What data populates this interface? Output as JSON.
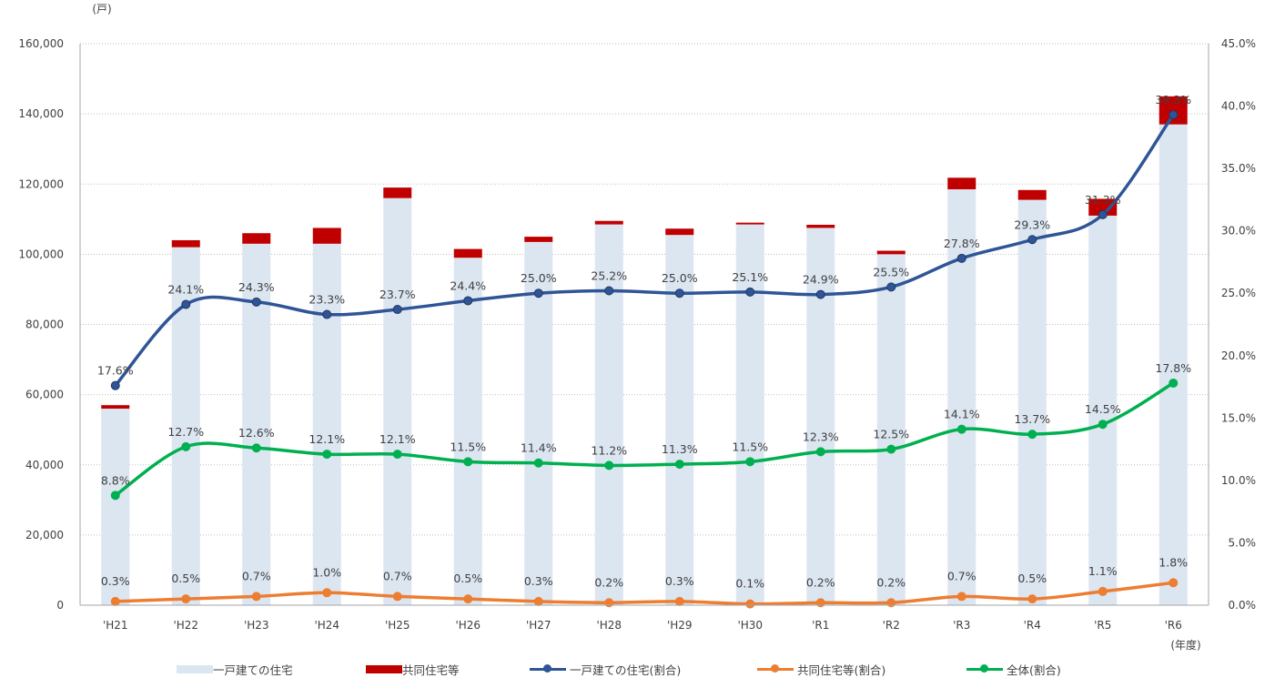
{
  "chart_data": {
    "type": "bar+line",
    "categories": [
      "'H21",
      "'H22",
      "'H23",
      "'H24",
      "'H25",
      "'H26",
      "'H27",
      "'H28",
      "'H29",
      "'H30",
      "'R1",
      "'R2",
      "'R3",
      "'R4",
      "'R5",
      "'R6"
    ],
    "xlabel": "(年度)",
    "y_left": {
      "unit": "(戸)",
      "min": 0,
      "max": 160000,
      "step": 20000,
      "ticks": [
        "0",
        "20,000",
        "40,000",
        "60,000",
        "80,000",
        "100,000",
        "120,000",
        "140,000",
        "160,000"
      ]
    },
    "y_right": {
      "min": 0,
      "max": 45,
      "step": 5,
      "ticks": [
        "0.0%",
        "5.0%",
        "10.0%",
        "15.0%",
        "20.0%",
        "25.0%",
        "30.0%",
        "35.0%",
        "40.0%",
        "45.0%"
      ]
    },
    "grid": true,
    "legend_position": "bottom",
    "bars": [
      {
        "name": "一戸建ての住宅",
        "color": "#dce6f1",
        "values": [
          56000,
          102000,
          103000,
          103000,
          116000,
          99000,
          103500,
          108500,
          105500,
          108500,
          107500,
          100000,
          118500,
          115500,
          111000,
          137000
        ]
      },
      {
        "name": "共同住宅等",
        "color": "#c00000",
        "values": [
          1000,
          2000,
          3000,
          4500,
          3000,
          2500,
          1500,
          1000,
          1800,
          500,
          900,
          1000,
          3300,
          2800,
          4800,
          8000
        ]
      }
    ],
    "lines": [
      {
        "name": "一戸建ての住宅(割合)",
        "color": "#2f5597",
        "values": [
          17.6,
          24.1,
          24.3,
          23.3,
          23.7,
          24.4,
          25.0,
          25.2,
          25.0,
          25.1,
          24.9,
          25.5,
          27.8,
          29.3,
          31.3,
          39.3
        ],
        "labels": [
          "17.6%",
          "24.1%",
          "24.3%",
          "23.3%",
          "23.7%",
          "24.4%",
          "25.0%",
          "25.2%",
          "25.0%",
          "25.1%",
          "24.9%",
          "25.5%",
          "27.8%",
          "29.3%",
          "31.3%",
          "39.3%"
        ]
      },
      {
        "name": "共同住宅等(割合)",
        "color": "#ed7d31",
        "values": [
          0.3,
          0.5,
          0.7,
          1.0,
          0.7,
          0.5,
          0.3,
          0.2,
          0.3,
          0.1,
          0.2,
          0.2,
          0.7,
          0.5,
          1.1,
          1.8
        ],
        "labels": [
          "0.3%",
          "0.5%",
          "0.7%",
          "1.0%",
          "0.7%",
          "0.5%",
          "0.3%",
          "0.2%",
          "0.3%",
          "0.1%",
          "0.2%",
          "0.2%",
          "0.7%",
          "0.5%",
          "1.1%",
          "1.8%"
        ]
      },
      {
        "name": "全体(割合)",
        "color": "#00b050",
        "values": [
          8.8,
          12.7,
          12.6,
          12.1,
          12.1,
          11.5,
          11.4,
          11.2,
          11.3,
          11.5,
          12.3,
          12.5,
          14.1,
          13.7,
          14.5,
          17.8
        ],
        "labels": [
          "8.8%",
          "12.7%",
          "12.6%",
          "12.1%",
          "12.1%",
          "11.5%",
          "11.4%",
          "11.2%",
          "11.3%",
          "11.5%",
          "12.3%",
          "12.5%",
          "14.1%",
          "13.7%",
          "14.5%",
          "17.8%"
        ]
      }
    ]
  },
  "legend": {
    "items": [
      {
        "label": "一戸建ての住宅",
        "kind": "bar",
        "color": "#dce6f1"
      },
      {
        "label": "共同住宅等",
        "kind": "bar",
        "color": "#c00000"
      },
      {
        "label": "一戸建ての住宅(割合)",
        "kind": "line",
        "color": "#2f5597"
      },
      {
        "label": "共同住宅等(割合)",
        "kind": "line",
        "color": "#ed7d31"
      },
      {
        "label": "全体(割合)",
        "kind": "line",
        "color": "#00b050"
      }
    ]
  }
}
